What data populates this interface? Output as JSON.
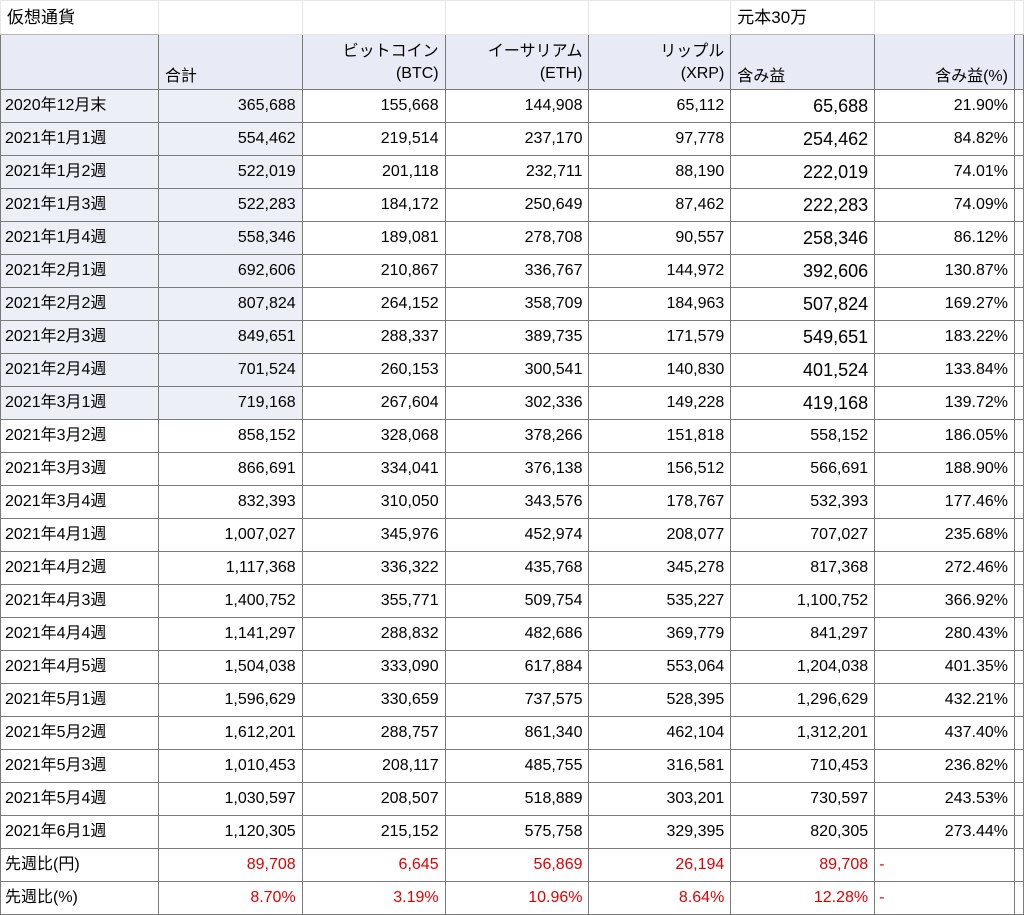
{
  "sheet": {
    "title": "仮想通貨",
    "capital_note": "元本30万",
    "headers": {
      "total": "合計",
      "btc_line1": "ビットコイン",
      "btc_line2": "(BTC)",
      "eth_line1": "イーサリアム",
      "eth_line2": "(ETH)",
      "xrp_line1": "リップル",
      "xrp_line2": "(XRP)",
      "gain": "含み益",
      "gain_pct": "含み益(%)"
    },
    "rows": [
      {
        "label": "2020年12月末",
        "total": "365,688",
        "btc": "155,668",
        "eth": "144,908",
        "xrp": "65,112",
        "gain": "65,688",
        "pct": "21.90%"
      },
      {
        "label": "2021年1月1週",
        "total": "554,462",
        "btc": "219,514",
        "eth": "237,170",
        "xrp": "97,778",
        "gain": "254,462",
        "pct": "84.82%"
      },
      {
        "label": "2021年1月2週",
        "total": "522,019",
        "btc": "201,118",
        "eth": "232,711",
        "xrp": "88,190",
        "gain": "222,019",
        "pct": "74.01%"
      },
      {
        "label": "2021年1月3週",
        "total": "522,283",
        "btc": "184,172",
        "eth": "250,649",
        "xrp": "87,462",
        "gain": "222,283",
        "pct": "74.09%"
      },
      {
        "label": "2021年1月4週",
        "total": "558,346",
        "btc": "189,081",
        "eth": "278,708",
        "xrp": "90,557",
        "gain": "258,346",
        "pct": "86.12%"
      },
      {
        "label": "2021年2月1週",
        "total": "692,606",
        "btc": "210,867",
        "eth": "336,767",
        "xrp": "144,972",
        "gain": "392,606",
        "pct": "130.87%"
      },
      {
        "label": "2021年2月2週",
        "total": "807,824",
        "btc": "264,152",
        "eth": "358,709",
        "xrp": "184,963",
        "gain": "507,824",
        "pct": "169.27%"
      },
      {
        "label": "2021年2月3週",
        "total": "849,651",
        "btc": "288,337",
        "eth": "389,735",
        "xrp": "171,579",
        "gain": "549,651",
        "pct": "183.22%"
      },
      {
        "label": "2021年2月4週",
        "total": "701,524",
        "btc": "260,153",
        "eth": "300,541",
        "xrp": "140,830",
        "gain": "401,524",
        "pct": "133.84%"
      },
      {
        "label": "2021年3月1週",
        "total": "719,168",
        "btc": "267,604",
        "eth": "302,336",
        "xrp": "149,228",
        "gain": "419,168",
        "pct": "139.72%"
      },
      {
        "label": "2021年3月2週",
        "total": "858,152",
        "btc": "328,068",
        "eth": "378,266",
        "xrp": "151,818",
        "gain": "558,152",
        "pct": "186.05%"
      },
      {
        "label": "2021年3月3週",
        "total": "866,691",
        "btc": "334,041",
        "eth": "376,138",
        "xrp": "156,512",
        "gain": "566,691",
        "pct": "188.90%"
      },
      {
        "label": "2021年3月4週",
        "total": "832,393",
        "btc": "310,050",
        "eth": "343,576",
        "xrp": "178,767",
        "gain": "532,393",
        "pct": "177.46%"
      },
      {
        "label": "2021年4月1週",
        "total": "1,007,027",
        "btc": "345,976",
        "eth": "452,974",
        "xrp": "208,077",
        "gain": "707,027",
        "pct": "235.68%"
      },
      {
        "label": "2021年4月2週",
        "total": "1,117,368",
        "btc": "336,322",
        "eth": "435,768",
        "xrp": "345,278",
        "gain": "817,368",
        "pct": "272.46%"
      },
      {
        "label": "2021年4月3週",
        "total": "1,400,752",
        "btc": "355,771",
        "eth": "509,754",
        "xrp": "535,227",
        "gain": "1,100,752",
        "pct": "366.92%"
      },
      {
        "label": "2021年4月4週",
        "total": "1,141,297",
        "btc": "288,832",
        "eth": "482,686",
        "xrp": "369,779",
        "gain": "841,297",
        "pct": "280.43%"
      },
      {
        "label": "2021年4月5週",
        "total": "1,504,038",
        "btc": "333,090",
        "eth": "617,884",
        "xrp": "553,064",
        "gain": "1,204,038",
        "pct": "401.35%"
      },
      {
        "label": "2021年5月1週",
        "total": "1,596,629",
        "btc": "330,659",
        "eth": "737,575",
        "xrp": "528,395",
        "gain": "1,296,629",
        "pct": "432.21%"
      },
      {
        "label": "2021年5月2週",
        "total": "1,612,201",
        "btc": "288,757",
        "eth": "861,340",
        "xrp": "462,104",
        "gain": "1,312,201",
        "pct": "437.40%"
      },
      {
        "label": "2021年5月3週",
        "total": "1,010,453",
        "btc": "208,117",
        "eth": "485,755",
        "xrp": "316,581",
        "gain": "710,453",
        "pct": "236.82%"
      },
      {
        "label": "2021年5月4週",
        "total": "1,030,597",
        "btc": "208,507",
        "eth": "518,889",
        "xrp": "303,201",
        "gain": "730,597",
        "pct": "243.53%"
      },
      {
        "label": "2021年6月1週",
        "total": "1,120,305",
        "btc": "215,152",
        "eth": "575,758",
        "xrp": "329,395",
        "gain": "820,305",
        "pct": "273.44%"
      }
    ],
    "diff_rows": [
      {
        "label": "先週比(円)",
        "total": "89,708",
        "btc": "6,645",
        "eth": "56,869",
        "xrp": "26,194",
        "gain": "89,708",
        "pct": "-"
      },
      {
        "label": "先週比(%)",
        "total": "8.70%",
        "btc": "3.19%",
        "eth": "10.96%",
        "xrp": "8.64%",
        "gain": "12.28%",
        "pct": "-"
      }
    ],
    "colors": {
      "header_bg": "#e8eaf6",
      "shaded_bg": "#edeff7",
      "diff_red": "#e00000"
    }
  }
}
